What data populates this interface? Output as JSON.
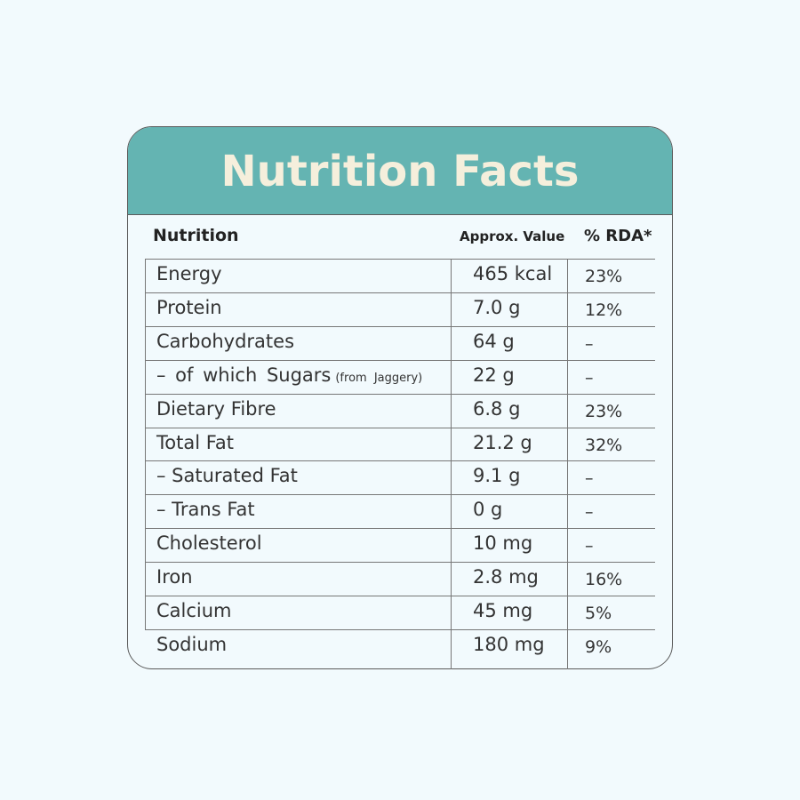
{
  "header": {
    "title": "Nutrition Facts"
  },
  "table": {
    "columns": [
      "Nutrition",
      "Approx. Value",
      "% RDA*"
    ],
    "rows": [
      {
        "nutrient": "Energy",
        "value": "465 kcal",
        "rda": "23%"
      },
      {
        "nutrient": "Protein",
        "value": "7.0 g",
        "rda": "12%"
      },
      {
        "nutrient": "Carbohydrates",
        "value": "64 g",
        "rda": "–"
      },
      {
        "nutrient": "– of which Sugars",
        "note": "(from Jaggery)",
        "value": "22 g",
        "rda": "–"
      },
      {
        "nutrient": "Dietary Fibre",
        "value": "6.8 g",
        "rda": "23%"
      },
      {
        "nutrient": "Total Fat",
        "value": "21.2 g",
        "rda": "32%"
      },
      {
        "nutrient": "– Saturated Fat",
        "value": "9.1 g",
        "rda": "–"
      },
      {
        "nutrient": "– Trans Fat",
        "value": "0 g",
        "rda": "–"
      },
      {
        "nutrient": "Cholesterol",
        "value": "10 mg",
        "rda": "–"
      },
      {
        "nutrient": "Iron",
        "value": "2.8 mg",
        "rda": "16%"
      },
      {
        "nutrient": "Calcium",
        "value": "45 mg",
        "rda": "5%"
      },
      {
        "nutrient": "Sodium",
        "value": "180 mg",
        "rda": "9%"
      }
    ]
  }
}
